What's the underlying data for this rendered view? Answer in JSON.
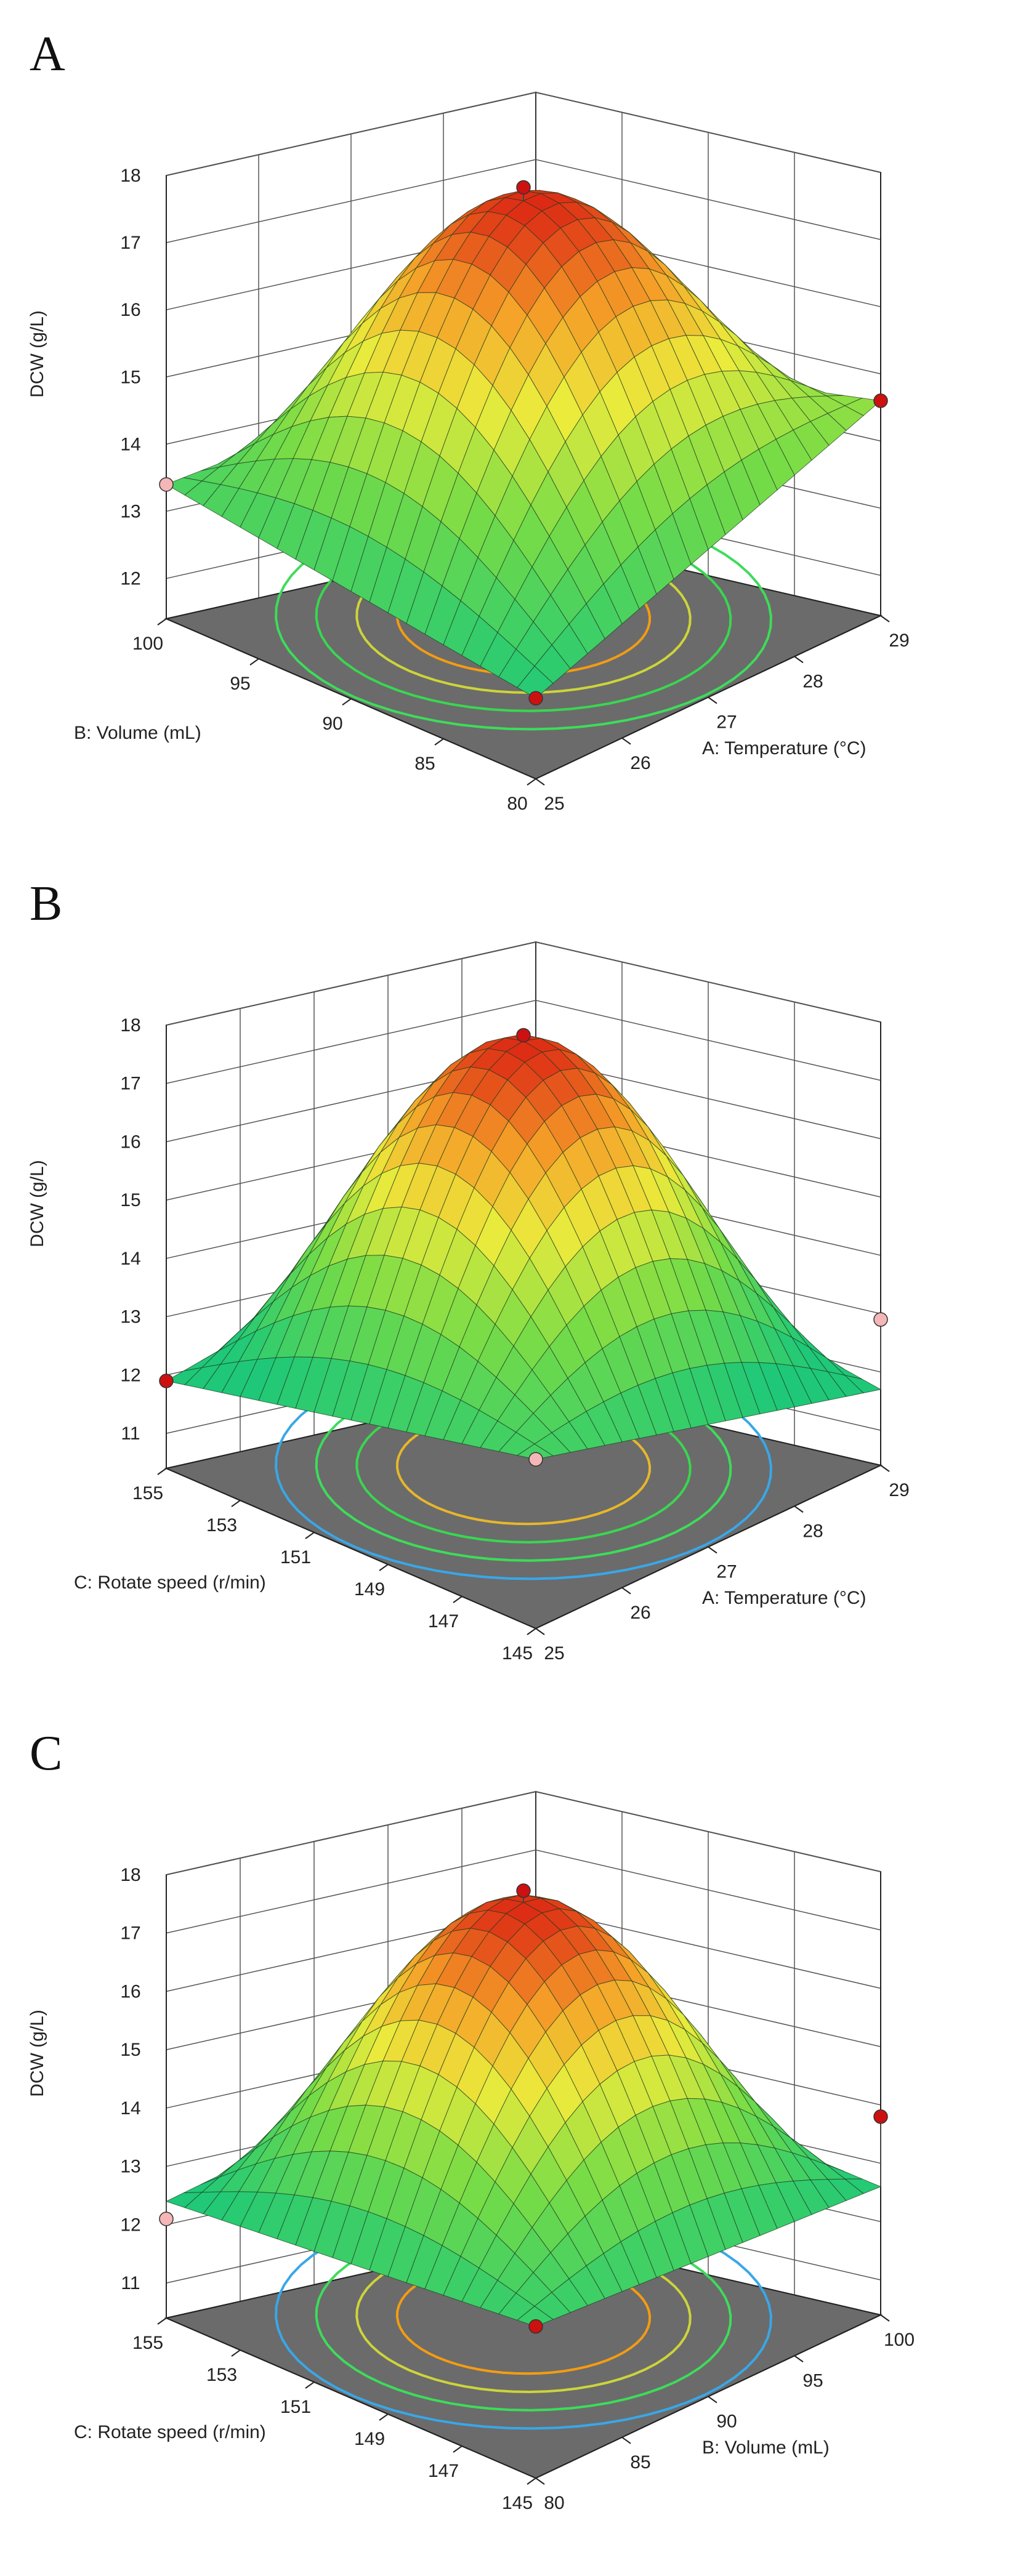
{
  "figure": {
    "panels": [
      "A",
      "B",
      "C"
    ]
  },
  "chart_data": [
    {
      "panel": "A",
      "type": "surface3d",
      "zlabel": "DCW (g/L)",
      "zticks": [
        12,
        13,
        14,
        15,
        16,
        17,
        18
      ],
      "zlim": [
        11.4,
        18
      ],
      "x": {
        "label": "A: Temperature (°C)",
        "ticks": [
          "25",
          "26",
          "27",
          "28",
          "29"
        ],
        "range": [
          25,
          29
        ]
      },
      "y": {
        "label": "B: Volume (mL)",
        "ticks": [
          "80",
          "85",
          "90",
          "95",
          "100"
        ],
        "range": [
          80,
          100
        ]
      },
      "surface": {
        "center": 17.6,
        "corner_near": 12.6,
        "corner_right": 14.6,
        "corner_left": 13.4,
        "corner_back": 13.0
      },
      "points": [
        {
          "label": "max",
          "z": 17.8,
          "color": "#cc1111"
        },
        {
          "label": "near",
          "z": 12.6,
          "color": "#cc1111"
        },
        {
          "label": "right",
          "z": 14.6,
          "color": "#cc1111"
        },
        {
          "label": "left",
          "z": 13.4,
          "color": "#f4b6b6"
        }
      ],
      "contours": [
        "#3ddc5a",
        "#39d74f",
        "#cdd43a",
        "#f39c12"
      ]
    },
    {
      "panel": "B",
      "type": "surface3d",
      "zlabel": "DCW (g/L)",
      "zticks": [
        11,
        12,
        13,
        14,
        15,
        16,
        17,
        18
      ],
      "zlim": [
        10.4,
        18
      ],
      "x": {
        "label": "A: Temperature (°C)",
        "ticks": [
          "25",
          "26",
          "27",
          "28",
          "29"
        ],
        "range": [
          25,
          29
        ]
      },
      "y": {
        "label": "C: Rotate speed (r/min)",
        "ticks": [
          "145",
          "147",
          "149",
          "151",
          "153",
          "155"
        ],
        "range": [
          145,
          155
        ]
      },
      "surface": {
        "center": 17.7,
        "corner_near": 13.3,
        "corner_right": 11.7,
        "corner_left": 11.9,
        "corner_back": 12.5
      },
      "points": [
        {
          "label": "max",
          "z": 17.8,
          "color": "#cc1111"
        },
        {
          "label": "near",
          "z": 13.3,
          "color": "#f4b6b6"
        },
        {
          "label": "right",
          "z": 12.9,
          "color": "#f4b6b6"
        },
        {
          "label": "left",
          "z": 11.9,
          "color": "#cc1111"
        }
      ],
      "contours": [
        "#39a7e8",
        "#3ddc5a",
        "#39d74f",
        "#e7b72a"
      ]
    },
    {
      "panel": "C",
      "type": "surface3d",
      "zlabel": "DCW (g/L)",
      "zticks": [
        11,
        12,
        13,
        14,
        15,
        16,
        17,
        18
      ],
      "zlim": [
        10.4,
        18
      ],
      "x": {
        "label": "B: Volume (mL)",
        "ticks": [
          "80",
          "85",
          "90",
          "95",
          "100"
        ],
        "range": [
          80,
          100
        ]
      },
      "y": {
        "label": "C: Rotate speed (r/min)",
        "ticks": [
          "145",
          "147",
          "149",
          "151",
          "153",
          "155"
        ],
        "range": [
          145,
          155
        ]
      },
      "surface": {
        "center": 17.5,
        "corner_near": 13.0,
        "corner_right": 12.6,
        "corner_left": 12.4,
        "corner_back": 12.5
      },
      "points": [
        {
          "label": "max",
          "z": 17.7,
          "color": "#cc1111"
        },
        {
          "label": "near",
          "z": 13.0,
          "color": "#cc1111"
        },
        {
          "label": "right",
          "z": 13.8,
          "color": "#cc1111"
        },
        {
          "label": "left",
          "z": 12.1,
          "color": "#f4b6b6"
        }
      ],
      "contours": [
        "#39a7e8",
        "#3ddc5a",
        "#cdd43a",
        "#f39c12"
      ]
    }
  ]
}
